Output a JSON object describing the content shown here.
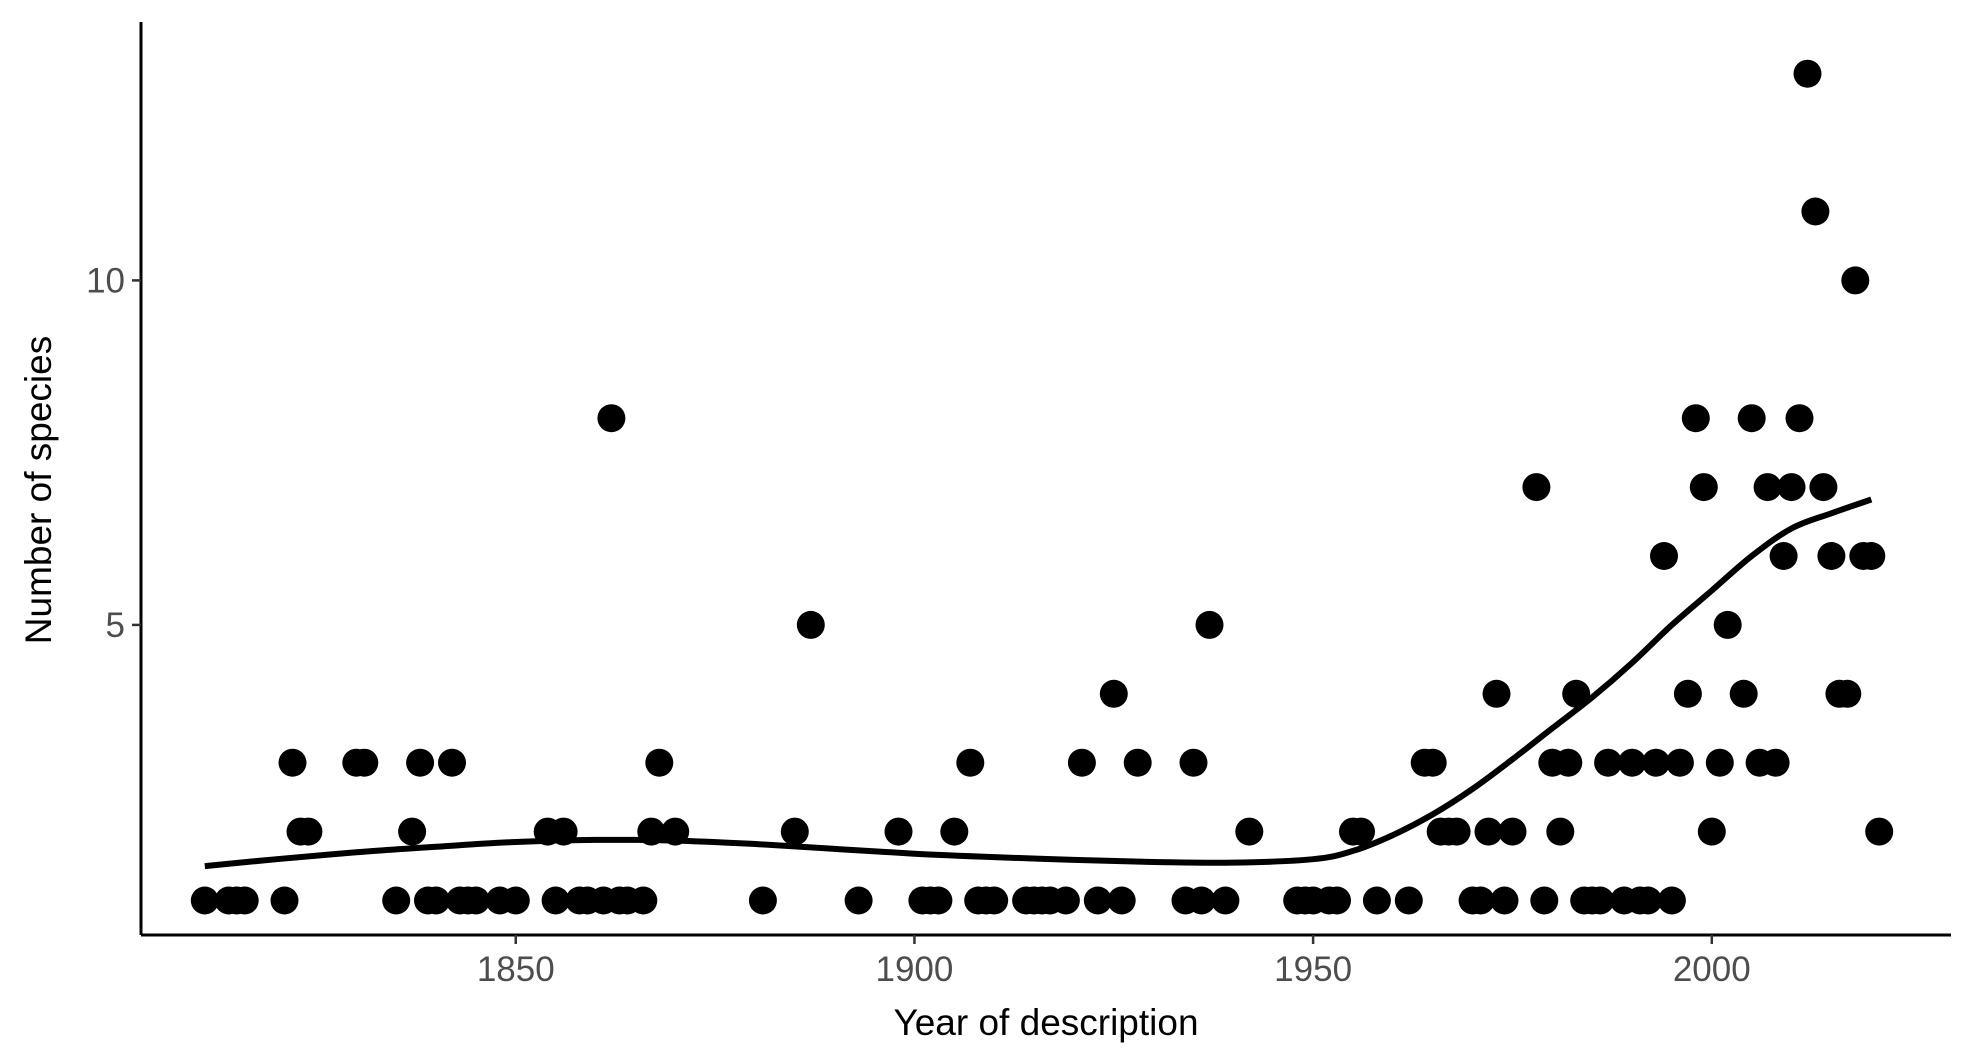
{
  "chart_data": {
    "type": "scatter",
    "xlabel": "Year of description",
    "ylabel": "Number of species",
    "xlim": [
      1803,
      2030
    ],
    "ylim": [
      0.5,
      13.75
    ],
    "x_ticks": [
      1850,
      1900,
      1950,
      2000
    ],
    "y_ticks": [
      5,
      10
    ],
    "grid": false,
    "legend": "none",
    "point_color": "#000000",
    "line_color": "#000000",
    "points": [
      [
        1811,
        1
      ],
      [
        1814,
        1
      ],
      [
        1815,
        1
      ],
      [
        1816,
        1
      ],
      [
        1821,
        1
      ],
      [
        1822,
        3
      ],
      [
        1823,
        2
      ],
      [
        1824,
        2
      ],
      [
        1830,
        3
      ],
      [
        1831,
        3
      ],
      [
        1835,
        1
      ],
      [
        1837,
        2
      ],
      [
        1838,
        3
      ],
      [
        1839,
        1
      ],
      [
        1840,
        1
      ],
      [
        1842,
        3
      ],
      [
        1843,
        1
      ],
      [
        1844,
        1
      ],
      [
        1845,
        1
      ],
      [
        1848,
        1
      ],
      [
        1850,
        1
      ],
      [
        1854,
        2
      ],
      [
        1855,
        1
      ],
      [
        1856,
        2
      ],
      [
        1858,
        1
      ],
      [
        1859,
        1
      ],
      [
        1861,
        1
      ],
      [
        1862,
        8
      ],
      [
        1863,
        1
      ],
      [
        1864,
        1
      ],
      [
        1866,
        1
      ],
      [
        1867,
        2
      ],
      [
        1868,
        3
      ],
      [
        1870,
        2
      ],
      [
        1881,
        1
      ],
      [
        1885,
        2
      ],
      [
        1887,
        5
      ],
      [
        1893,
        1
      ],
      [
        1898,
        2
      ],
      [
        1901,
        1
      ],
      [
        1902,
        1
      ],
      [
        1903,
        1
      ],
      [
        1905,
        2
      ],
      [
        1907,
        3
      ],
      [
        1908,
        1
      ],
      [
        1909,
        1
      ],
      [
        1910,
        1
      ],
      [
        1914,
        1
      ],
      [
        1915,
        1
      ],
      [
        1916,
        1
      ],
      [
        1917,
        1
      ],
      [
        1919,
        1
      ],
      [
        1921,
        3
      ],
      [
        1923,
        1
      ],
      [
        1925,
        4
      ],
      [
        1926,
        1
      ],
      [
        1928,
        3
      ],
      [
        1934,
        1
      ],
      [
        1935,
        3
      ],
      [
        1936,
        1
      ],
      [
        1937,
        5
      ],
      [
        1939,
        1
      ],
      [
        1942,
        2
      ],
      [
        1948,
        1
      ],
      [
        1949,
        1
      ],
      [
        1950,
        1
      ],
      [
        1952,
        1
      ],
      [
        1953,
        1
      ],
      [
        1955,
        2
      ],
      [
        1956,
        2
      ],
      [
        1958,
        1
      ],
      [
        1962,
        1
      ],
      [
        1964,
        3
      ],
      [
        1965,
        3
      ],
      [
        1966,
        2
      ],
      [
        1967,
        2
      ],
      [
        1968,
        2
      ],
      [
        1970,
        1
      ],
      [
        1971,
        1
      ],
      [
        1972,
        2
      ],
      [
        1973,
        4
      ],
      [
        1974,
        1
      ],
      [
        1975,
        2
      ],
      [
        1978,
        7
      ],
      [
        1979,
        1
      ],
      [
        1980,
        3
      ],
      [
        1981,
        2
      ],
      [
        1982,
        3
      ],
      [
        1983,
        4
      ],
      [
        1984,
        1
      ],
      [
        1985,
        1
      ],
      [
        1986,
        1
      ],
      [
        1987,
        3
      ],
      [
        1989,
        1
      ],
      [
        1990,
        3
      ],
      [
        1991,
        1
      ],
      [
        1992,
        1
      ],
      [
        1993,
        3
      ],
      [
        1994,
        6
      ],
      [
        1995,
        1
      ],
      [
        1996,
        3
      ],
      [
        1997,
        4
      ],
      [
        1998,
        8
      ],
      [
        1999,
        7
      ],
      [
        2000,
        2
      ],
      [
        2001,
        3
      ],
      [
        2002,
        5
      ],
      [
        2004,
        4
      ],
      [
        2005,
        8
      ],
      [
        2006,
        3
      ],
      [
        2007,
        7
      ],
      [
        2008,
        3
      ],
      [
        2009,
        6
      ],
      [
        2010,
        7
      ],
      [
        2011,
        8
      ],
      [
        2012,
        13
      ],
      [
        2013,
        11
      ],
      [
        2014,
        7
      ],
      [
        2015,
        6
      ],
      [
        2016,
        4
      ],
      [
        2017,
        4
      ],
      [
        2018,
        10
      ],
      [
        2019,
        6
      ],
      [
        2020,
        6
      ],
      [
        2021,
        2
      ]
    ],
    "trend_line": [
      [
        1811,
        1.5
      ],
      [
        1820,
        1.6
      ],
      [
        1830,
        1.7
      ],
      [
        1840,
        1.78
      ],
      [
        1850,
        1.85
      ],
      [
        1860,
        1.88
      ],
      [
        1870,
        1.87
      ],
      [
        1880,
        1.82
      ],
      [
        1890,
        1.75
      ],
      [
        1900,
        1.68
      ],
      [
        1910,
        1.63
      ],
      [
        1920,
        1.59
      ],
      [
        1930,
        1.56
      ],
      [
        1940,
        1.55
      ],
      [
        1950,
        1.6
      ],
      [
        1955,
        1.72
      ],
      [
        1960,
        1.95
      ],
      [
        1965,
        2.25
      ],
      [
        1970,
        2.62
      ],
      [
        1975,
        3.05
      ],
      [
        1980,
        3.5
      ],
      [
        1985,
        3.95
      ],
      [
        1990,
        4.45
      ],
      [
        1995,
        5.0
      ],
      [
        2000,
        5.5
      ],
      [
        2005,
        6.0
      ],
      [
        2010,
        6.4
      ],
      [
        2015,
        6.62
      ],
      [
        2020,
        6.82
      ]
    ]
  }
}
